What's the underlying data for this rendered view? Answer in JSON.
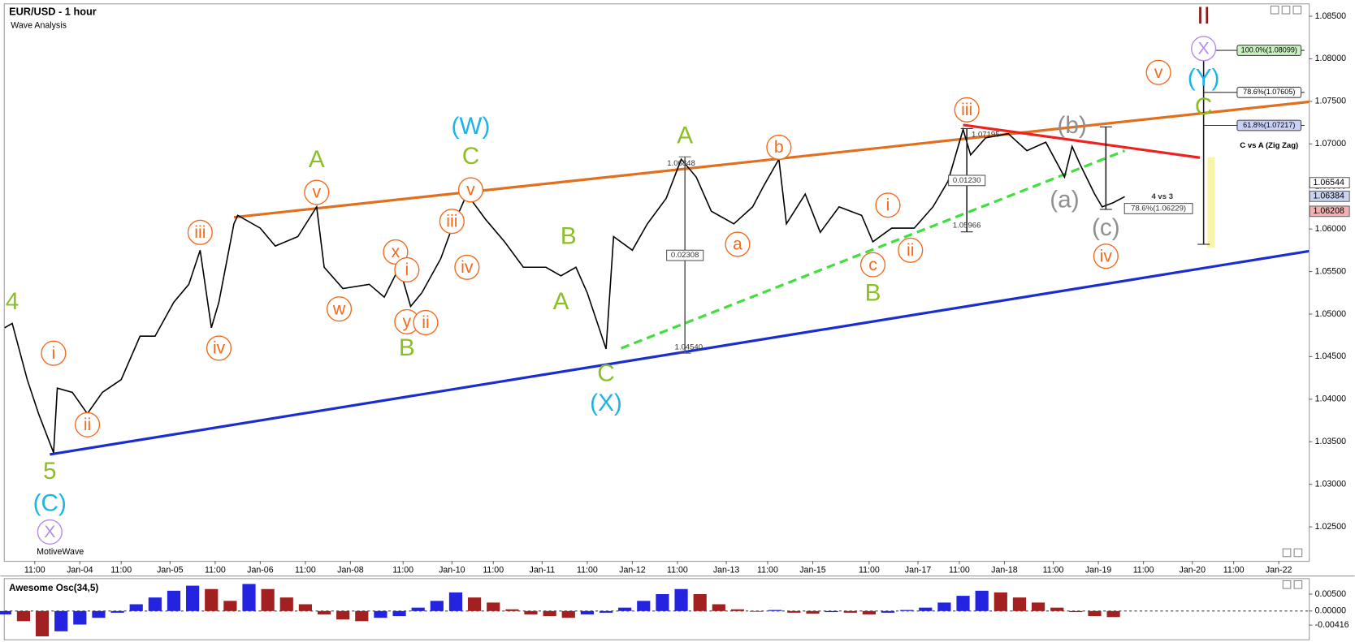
{
  "chart_data": {
    "type": "line",
    "title": "EUR/USD - 1 hour",
    "subtitle": "Wave Analysis",
    "watermark": "MotiveWave",
    "color": "#000000",
    "xlim": [
      0,
      347
    ],
    "xticks": [
      {
        "value": 8,
        "label": "11:00"
      },
      {
        "value": 20,
        "label": "Jan-04"
      },
      {
        "value": 31,
        "label": "11:00"
      },
      {
        "value": 44,
        "label": "Jan-05"
      },
      {
        "value": 56,
        "label": "11:00"
      },
      {
        "value": 68,
        "label": "Jan-06"
      },
      {
        "value": 80,
        "label": "11:00"
      },
      {
        "value": 92,
        "label": "Jan-08"
      },
      {
        "value": 106,
        "label": "11:00"
      },
      {
        "value": 119,
        "label": "Jan-10"
      },
      {
        "value": 130,
        "label": "11:00"
      },
      {
        "value": 143,
        "label": "Jan-11"
      },
      {
        "value": 155,
        "label": "11:00"
      },
      {
        "value": 167,
        "label": "Jan-12"
      },
      {
        "value": 179,
        "label": "11:00"
      },
      {
        "value": 192,
        "label": "Jan-13"
      },
      {
        "value": 203,
        "label": "11:00"
      },
      {
        "value": 215,
        "label": "Jan-15"
      },
      {
        "value": 230,
        "label": "11:00"
      },
      {
        "value": 243,
        "label": "Jan-17"
      },
      {
        "value": 254,
        "label": "11:00"
      },
      {
        "value": 266,
        "label": "Jan-18"
      },
      {
        "value": 279,
        "label": "11:00"
      },
      {
        "value": 291,
        "label": "Jan-19"
      },
      {
        "value": 303,
        "label": "11:00"
      },
      {
        "value": 316,
        "label": "Jan-20"
      },
      {
        "value": 327,
        "label": "11:00"
      },
      {
        "value": 339,
        "label": "Jan-22"
      }
    ],
    "ylim": [
      1.021,
      1.0864
    ],
    "yticks": [
      {
        "value": 1.025,
        "label": "1.02500"
      },
      {
        "value": 1.03,
        "label": "1.03000"
      },
      {
        "value": 1.035,
        "label": "1.03500"
      },
      {
        "value": 1.04,
        "label": "1.04000"
      },
      {
        "value": 1.045,
        "label": "1.04500"
      },
      {
        "value": 1.05,
        "label": "1.05000"
      },
      {
        "value": 1.055,
        "label": "1.05500"
      },
      {
        "value": 1.06,
        "label": "1.06000"
      },
      {
        "value": 1.065,
        "label": "1.06500"
      },
      {
        "value": 1.07,
        "label": "1.07000"
      },
      {
        "value": 1.075,
        "label": "1.07500"
      },
      {
        "value": 1.08,
        "label": "1.08000"
      },
      {
        "value": 1.085,
        "label": "1.08500"
      }
    ],
    "x": [
      0,
      2,
      6,
      9,
      13,
      14,
      18,
      22,
      26,
      31,
      36,
      40,
      45,
      49,
      52,
      55,
      57,
      61,
      62,
      68,
      72,
      78,
      83,
      85,
      90,
      97,
      101,
      105,
      108,
      111,
      116,
      119,
      123,
      128,
      133,
      138,
      144,
      148,
      152,
      155,
      160,
      162,
      167,
      171,
      176,
      180,
      184,
      188,
      194,
      199,
      202,
      206,
      208,
      213,
      217,
      222,
      228,
      231,
      236,
      242,
      247,
      251,
      255,
      257,
      261,
      267,
      272,
      277,
      282,
      284,
      286,
      290,
      292,
      295,
      298
    ],
    "values": [
      1.0484,
      1.0489,
      1.0423,
      1.0383,
      1.0337,
      1.0413,
      1.0408,
      1.0383,
      1.0408,
      1.0423,
      1.0474,
      1.0474,
      1.0514,
      1.0535,
      1.0575,
      1.0484,
      1.0514,
      1.0606,
      1.0616,
      1.0601,
      1.058,
      1.0591,
      1.0626,
      1.0555,
      1.053,
      1.0535,
      1.052,
      1.0555,
      1.0509,
      1.0525,
      1.0565,
      1.0601,
      1.0641,
      1.0611,
      1.0585,
      1.0555,
      1.0555,
      1.0545,
      1.0555,
      1.0525,
      1.0459,
      1.0591,
      1.0575,
      1.0606,
      1.0636,
      1.0682,
      1.0661,
      1.0621,
      1.0606,
      1.0626,
      1.0651,
      1.0682,
      1.0606,
      1.0641,
      1.0596,
      1.0626,
      1.0616,
      1.0585,
      1.0601,
      1.0601,
      1.0626,
      1.0656,
      1.0717,
      1.0687,
      1.0707,
      1.0712,
      1.0692,
      1.0702,
      1.0661,
      1.0697,
      1.0677,
      1.0641,
      1.0626,
      1.0631,
      1.0638
    ],
    "trendlines": [
      {
        "color": "#e07020",
        "dash": false,
        "x": [
          61,
          347
        ],
        "y": [
          1.06138,
          1.07494
        ]
      },
      {
        "color": "#1a2ed0",
        "dash": false,
        "x": [
          12,
          347
        ],
        "y": [
          1.03351,
          1.0574
        ]
      },
      {
        "color": "#3ee03e",
        "dash": true,
        "x": [
          164,
          298
        ],
        "y": [
          1.04598,
          1.06919
        ]
      },
      {
        "color": "#ee2020",
        "dash": false,
        "x": [
          255,
          318
        ],
        "y": [
          1.07223,
          1.06838
        ]
      }
    ],
    "measure_lines": [
      {
        "color": "#606060",
        "x": 181,
        "y": [
          1.06848,
          1.0454
        ]
      },
      {
        "color": "#202020",
        "x": 256,
        "y": [
          1.0718,
          1.05966
        ]
      },
      {
        "color": "#202020",
        "x": 293,
        "y": [
          1.072,
          1.0623
        ]
      },
      {
        "color": "#202020",
        "x": 319,
        "y": [
          1.08099,
          1.0582
        ]
      }
    ],
    "highlight": {
      "color": "#f8f4a8",
      "x": [
        320,
        322
      ],
      "y": [
        1.0684,
        1.0578
      ]
    },
    "wave_labels": [
      {
        "text": "4",
        "color": "#8cbf26",
        "circled": false,
        "x": 2,
        "y": 1.0513
      },
      {
        "text": "5",
        "color": "#8cbf26",
        "circled": false,
        "x": 12,
        "y": 1.0314
      },
      {
        "text": "(C)",
        "color": "#1eb4e6",
        "circled": false,
        "x": 12,
        "y": 1.0276
      },
      {
        "text": "X",
        "color": "#b48ce6",
        "circled": true,
        "x": 12,
        "y": 1.0244
      },
      {
        "text": "i",
        "color": "#f26b1d",
        "circled": true,
        "x": 13,
        "y": 1.0454
      },
      {
        "text": "ii",
        "color": "#f26b1d",
        "circled": true,
        "x": 22,
        "y": 1.037
      },
      {
        "text": "iii",
        "color": "#f26b1d",
        "circled": true,
        "x": 52,
        "y": 1.0596
      },
      {
        "text": "iv",
        "color": "#f26b1d",
        "circled": true,
        "x": 57,
        "y": 1.046
      },
      {
        "text": "v",
        "color": "#f26b1d",
        "circled": true,
        "x": 83,
        "y": 1.0643
      },
      {
        "text": "A",
        "color": "#8cbf26",
        "circled": false,
        "x": 83,
        "y": 1.068
      },
      {
        "text": "w",
        "color": "#f26b1d",
        "circled": true,
        "x": 89,
        "y": 1.0506
      },
      {
        "text": "x",
        "color": "#f26b1d",
        "circled": true,
        "x": 104,
        "y": 1.0573
      },
      {
        "text": "i",
        "color": "#f26b1d",
        "circled": true,
        "x": 107,
        "y": 1.0552
      },
      {
        "text": "y",
        "color": "#f26b1d",
        "circled": true,
        "x": 107,
        "y": 1.0491
      },
      {
        "text": "ii",
        "color": "#f26b1d",
        "circled": true,
        "x": 112,
        "y": 1.049
      },
      {
        "text": "B",
        "color": "#8cbf26",
        "circled": false,
        "x": 107,
        "y": 1.0459
      },
      {
        "text": "iii",
        "color": "#f26b1d",
        "circled": true,
        "x": 119,
        "y": 1.0609
      },
      {
        "text": "iv",
        "color": "#f26b1d",
        "circled": true,
        "x": 123,
        "y": 1.0555
      },
      {
        "text": "v",
        "color": "#f26b1d",
        "circled": true,
        "x": 124,
        "y": 1.0646
      },
      {
        "text": "C",
        "color": "#8cbf26",
        "circled": false,
        "x": 124,
        "y": 1.0684
      },
      {
        "text": "(W)",
        "color": "#1eb4e6",
        "circled": false,
        "x": 124,
        "y": 1.0719
      },
      {
        "text": "A",
        "color": "#8cbf26",
        "circled": false,
        "x": 148,
        "y": 1.0513
      },
      {
        "text": "B",
        "color": "#8cbf26",
        "circled": false,
        "x": 150,
        "y": 1.059
      },
      {
        "text": "C",
        "color": "#8cbf26",
        "circled": false,
        "x": 160,
        "y": 1.0429
      },
      {
        "text": "(X)",
        "color": "#1eb4e6",
        "circled": false,
        "x": 160,
        "y": 1.0394
      },
      {
        "text": "A",
        "color": "#8cbf26",
        "circled": false,
        "x": 181,
        "y": 1.0708
      },
      {
        "text": "a",
        "color": "#f26b1d",
        "circled": true,
        "x": 195,
        "y": 1.0582
      },
      {
        "text": "b",
        "color": "#f26b1d",
        "circled": true,
        "x": 206,
        "y": 1.0696
      },
      {
        "text": "c",
        "color": "#f26b1d",
        "circled": true,
        "x": 231,
        "y": 1.0558
      },
      {
        "text": "B",
        "color": "#8cbf26",
        "circled": false,
        "x": 231,
        "y": 1.0523
      },
      {
        "text": "i",
        "color": "#f26b1d",
        "circled": true,
        "x": 235,
        "y": 1.0628
      },
      {
        "text": "ii",
        "color": "#f26b1d",
        "circled": true,
        "x": 241,
        "y": 1.0575
      },
      {
        "text": "iii",
        "color": "#f26b1d",
        "circled": true,
        "x": 256,
        "y": 1.074
      },
      {
        "text": "(b)",
        "color": "#909090",
        "circled": false,
        "x": 284,
        "y": 1.072
      },
      {
        "text": "(a)",
        "color": "#909090",
        "circled": false,
        "x": 282,
        "y": 1.0633
      },
      {
        "text": "(c)",
        "color": "#909090",
        "circled": false,
        "x": 293,
        "y": 1.06
      },
      {
        "text": "iv",
        "color": "#f26b1d",
        "circled": true,
        "x": 293,
        "y": 1.0568
      },
      {
        "text": "v",
        "color": "#f26b1d",
        "circled": true,
        "x": 307,
        "y": 1.0784
      },
      {
        "text": "II",
        "color": "#8b1a1a",
        "circled": false,
        "x": 319,
        "y": 1.0849
      },
      {
        "text": "X",
        "color": "#b48ce6",
        "circled": true,
        "x": 319,
        "y": 1.0812
      },
      {
        "text": "(Y)",
        "color": "#1eb4e6",
        "circled": false,
        "x": 319,
        "y": 1.0776
      },
      {
        "text": "C",
        "color": "#8cbf26",
        "circled": false,
        "x": 319,
        "y": 1.0742
      }
    ],
    "notes": [
      {
        "text": "1.06848",
        "boxed": false,
        "bold": false,
        "x": 180,
        "y": 1.0677
      },
      {
        "text": "0.02308",
        "boxed": true,
        "bold": false,
        "x": 181,
        "y": 1.0569
      },
      {
        "text": "1.04540",
        "boxed": false,
        "bold": false,
        "x": 182,
        "y": 1.0461
      },
      {
        "text": "1.07195",
        "boxed": false,
        "bold": false,
        "x": 261,
        "y": 1.0711
      },
      {
        "text": "0.01230",
        "boxed": true,
        "bold": false,
        "x": 256,
        "y": 1.0657
      },
      {
        "text": "1.05966",
        "boxed": false,
        "bold": false,
        "x": 256,
        "y": 1.0604
      },
      {
        "text": "4 vs 3",
        "boxed": false,
        "bold": true,
        "x": 308,
        "y": 1.0638
      },
      {
        "text": "78.6%(1.06229)",
        "boxed": true,
        "bold": false,
        "x": 307,
        "y": 1.0624
      }
    ],
    "fib_levels": [
      {
        "value": 1.08099,
        "label": "100.0%(1.08099)",
        "color": "#c8f0c0"
      },
      {
        "value": 1.07605,
        "label": "78.6%(1.07605)",
        "color": "#ffffff"
      },
      {
        "value": 1.07217,
        "label": "61.8%(1.07217)",
        "color": "#c8d0f8"
      }
    ],
    "fib_note": {
      "text": "C vs A (Zig Zag)",
      "y": 1.0698
    },
    "price_tags": [
      {
        "value": 1.06544,
        "label": "1.06544",
        "color": "#ffffff"
      },
      {
        "value": 1.06384,
        "label": "1.06384",
        "color": "#c8d4f0"
      },
      {
        "value": 1.06208,
        "label": "1.06208",
        "color": "#f4b0b0"
      }
    ],
    "oscillator": {
      "title": "Awesome Osc(34,5)",
      "up_color": "#2424e0",
      "down_color": "#a32020",
      "ylim": [
        -0.0084,
        0.00947
      ],
      "yticks": [
        {
          "value": 0.005,
          "label": "0.00500"
        },
        {
          "value": 0,
          "label": "0.00000"
        },
        {
          "value": -0.00416,
          "label": "-0.00416"
        }
      ],
      "x": [
        0,
        5,
        10,
        15,
        20,
        25,
        30,
        35,
        40,
        45,
        50,
        55,
        60,
        65,
        70,
        75,
        80,
        85,
        90,
        95,
        100,
        105,
        110,
        115,
        120,
        125,
        130,
        135,
        140,
        145,
        150,
        155,
        160,
        165,
        170,
        175,
        180,
        185,
        190,
        195,
        200,
        205,
        210,
        215,
        220,
        225,
        230,
        235,
        240,
        245,
        250,
        255,
        260,
        265,
        270,
        275,
        280,
        285,
        290,
        295
      ],
      "values": [
        -0.001,
        -0.003,
        -0.0075,
        -0.006,
        -0.004,
        -0.002,
        -0.0005,
        0.002,
        0.004,
        0.006,
        0.0075,
        0.0065,
        0.003,
        0.008,
        0.0065,
        0.004,
        0.002,
        -0.001,
        -0.0025,
        -0.003,
        -0.002,
        -0.0015,
        0.001,
        0.003,
        0.0055,
        0.004,
        0.0025,
        0.0005,
        -0.001,
        -0.0015,
        -0.002,
        -0.001,
        -0.0005,
        0.001,
        0.003,
        0.005,
        0.0065,
        0.005,
        0.002,
        0.0005,
        -0.0002,
        0.0003,
        -0.0005,
        -0.0008,
        -0.0003,
        -0.0005,
        -0.001,
        -0.0005,
        0.0003,
        0.001,
        0.0025,
        0.0045,
        0.006,
        0.0055,
        0.004,
        0.0025,
        0.001,
        -0.0003,
        -0.0015,
        -0.0018
      ]
    }
  }
}
